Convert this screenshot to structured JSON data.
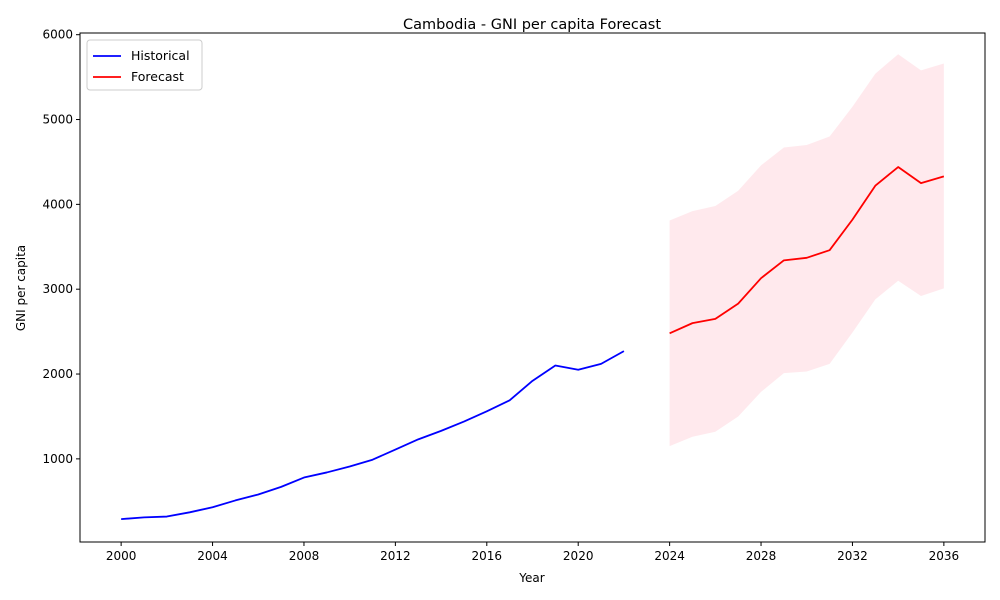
{
  "chart_data": {
    "type": "line",
    "title": "Cambodia - GNI per capita Forecast",
    "xlabel": "Year",
    "ylabel": "GNI per capita",
    "xlim": [
      1998.2,
      2037.8
    ],
    "ylim": [
      20,
      6020
    ],
    "x_ticks": [
      2000,
      2004,
      2008,
      2012,
      2016,
      2020,
      2024,
      2028,
      2032,
      2036
    ],
    "y_ticks": [
      1000,
      2000,
      3000,
      4000,
      5000,
      6000
    ],
    "legend_position": "top-left",
    "grid": false,
    "series": [
      {
        "name": "Historical",
        "color": "#0000ff",
        "x": [
          2000,
          2001,
          2002,
          2003,
          2004,
          2005,
          2006,
          2007,
          2008,
          2009,
          2010,
          2011,
          2012,
          2013,
          2014,
          2015,
          2016,
          2017,
          2018,
          2019,
          2020,
          2021,
          2022
        ],
        "y": [
          290,
          310,
          320,
          370,
          430,
          510,
          580,
          670,
          780,
          840,
          910,
          990,
          1110,
          1230,
          1330,
          1440,
          1560,
          1690,
          1920,
          2100,
          2050,
          2120,
          2270
        ]
      },
      {
        "name": "Forecast",
        "color": "#ff0000",
        "x": [
          2024,
          2025,
          2026,
          2027,
          2028,
          2029,
          2030,
          2031,
          2032,
          2033,
          2034,
          2035,
          2036
        ],
        "y": [
          2480,
          2600,
          2650,
          2830,
          3130,
          3340,
          3370,
          3460,
          3820,
          4220,
          4440,
          4250,
          4330
        ],
        "lower": [
          1150,
          1260,
          1320,
          1500,
          1790,
          2010,
          2030,
          2120,
          2490,
          2880,
          3100,
          2920,
          3010
        ],
        "upper": [
          3810,
          3920,
          3980,
          4160,
          4460,
          4670,
          4700,
          4800,
          5150,
          5540,
          5770,
          5580,
          5660
        ],
        "band_color": "#ffc0cb"
      }
    ]
  }
}
